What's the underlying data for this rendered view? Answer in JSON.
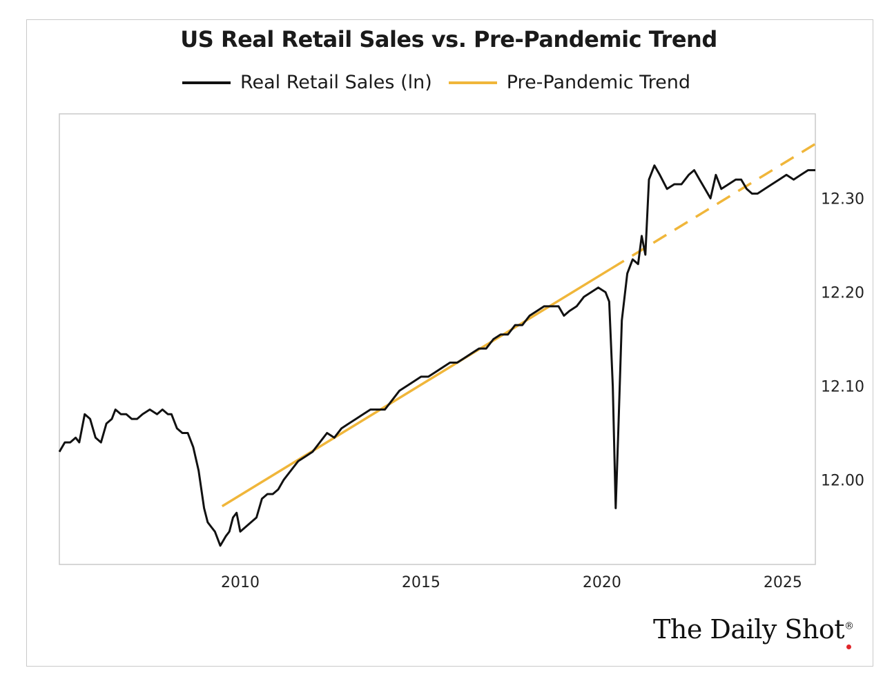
{
  "chart_data": {
    "type": "line",
    "title": "US Real Retail Sales vs. Pre-Pandemic Trend",
    "xlabel": "",
    "ylabel": "",
    "xlim": [
      2005.0,
      2025.9
    ],
    "ylim": [
      11.91,
      12.39
    ],
    "x_ticks": [
      2010,
      2015,
      2020,
      2025
    ],
    "y_ticks": [
      "12.00",
      "12.10",
      "12.20",
      "12.30"
    ],
    "y_tick_values": [
      12.0,
      12.1,
      12.2,
      12.3
    ],
    "y_axis_side": "right",
    "grid": false,
    "legend_placement": "top-center",
    "series": [
      {
        "name": "Real Retail Sales (ln)",
        "color": "#111111",
        "style": "solid",
        "points": [
          [
            2005.0,
            12.03
          ],
          [
            2005.15,
            12.04
          ],
          [
            2005.3,
            12.04
          ],
          [
            2005.45,
            12.045
          ],
          [
            2005.55,
            12.04
          ],
          [
            2005.7,
            12.07
          ],
          [
            2005.85,
            12.065
          ],
          [
            2006.0,
            12.045
          ],
          [
            2006.15,
            12.04
          ],
          [
            2006.3,
            12.06
          ],
          [
            2006.45,
            12.065
          ],
          [
            2006.55,
            12.075
          ],
          [
            2006.7,
            12.07
          ],
          [
            2006.85,
            12.07
          ],
          [
            2007.0,
            12.065
          ],
          [
            2007.15,
            12.065
          ],
          [
            2007.3,
            12.07
          ],
          [
            2007.5,
            12.075
          ],
          [
            2007.7,
            12.07
          ],
          [
            2007.85,
            12.075
          ],
          [
            2008.0,
            12.07
          ],
          [
            2008.1,
            12.07
          ],
          [
            2008.25,
            12.055
          ],
          [
            2008.4,
            12.05
          ],
          [
            2008.55,
            12.05
          ],
          [
            2008.7,
            12.035
          ],
          [
            2008.85,
            12.01
          ],
          [
            2009.0,
            11.97
          ],
          [
            2009.1,
            11.955
          ],
          [
            2009.2,
            11.95
          ],
          [
            2009.3,
            11.945
          ],
          [
            2009.45,
            11.93
          ],
          [
            2009.6,
            11.94
          ],
          [
            2009.7,
            11.945
          ],
          [
            2009.8,
            11.96
          ],
          [
            2009.9,
            11.965
          ],
          [
            2010.0,
            11.945
          ],
          [
            2010.15,
            11.95
          ],
          [
            2010.3,
            11.955
          ],
          [
            2010.45,
            11.96
          ],
          [
            2010.6,
            11.98
          ],
          [
            2010.75,
            11.985
          ],
          [
            2010.9,
            11.985
          ],
          [
            2011.05,
            11.99
          ],
          [
            2011.2,
            12.0
          ],
          [
            2011.4,
            12.01
          ],
          [
            2011.6,
            12.02
          ],
          [
            2011.8,
            12.025
          ],
          [
            2012.0,
            12.03
          ],
          [
            2012.2,
            12.04
          ],
          [
            2012.4,
            12.05
          ],
          [
            2012.6,
            12.045
          ],
          [
            2012.8,
            12.055
          ],
          [
            2013.0,
            12.06
          ],
          [
            2013.2,
            12.065
          ],
          [
            2013.4,
            12.07
          ],
          [
            2013.6,
            12.075
          ],
          [
            2013.8,
            12.075
          ],
          [
            2014.0,
            12.075
          ],
          [
            2014.2,
            12.085
          ],
          [
            2014.4,
            12.095
          ],
          [
            2014.6,
            12.1
          ],
          [
            2014.8,
            12.105
          ],
          [
            2015.0,
            12.11
          ],
          [
            2015.2,
            12.11
          ],
          [
            2015.4,
            12.115
          ],
          [
            2015.6,
            12.12
          ],
          [
            2015.8,
            12.125
          ],
          [
            2016.0,
            12.125
          ],
          [
            2016.2,
            12.13
          ],
          [
            2016.4,
            12.135
          ],
          [
            2016.6,
            12.14
          ],
          [
            2016.8,
            12.14
          ],
          [
            2017.0,
            12.15
          ],
          [
            2017.2,
            12.155
          ],
          [
            2017.4,
            12.155
          ],
          [
            2017.6,
            12.165
          ],
          [
            2017.8,
            12.165
          ],
          [
            2018.0,
            12.175
          ],
          [
            2018.2,
            12.18
          ],
          [
            2018.4,
            12.185
          ],
          [
            2018.6,
            12.185
          ],
          [
            2018.8,
            12.185
          ],
          [
            2018.95,
            12.175
          ],
          [
            2019.1,
            12.18
          ],
          [
            2019.3,
            12.185
          ],
          [
            2019.5,
            12.195
          ],
          [
            2019.7,
            12.2
          ],
          [
            2019.9,
            12.205
          ],
          [
            2020.1,
            12.2
          ],
          [
            2020.2,
            12.19
          ],
          [
            2020.3,
            12.1
          ],
          [
            2020.38,
            11.97
          ],
          [
            2020.45,
            12.05
          ],
          [
            2020.55,
            12.17
          ],
          [
            2020.7,
            12.22
          ],
          [
            2020.85,
            12.235
          ],
          [
            2021.0,
            12.23
          ],
          [
            2021.1,
            12.26
          ],
          [
            2021.2,
            12.24
          ],
          [
            2021.3,
            12.32
          ],
          [
            2021.45,
            12.335
          ],
          [
            2021.6,
            12.325
          ],
          [
            2021.8,
            12.31
          ],
          [
            2022.0,
            12.315
          ],
          [
            2022.2,
            12.315
          ],
          [
            2022.4,
            12.325
          ],
          [
            2022.55,
            12.33
          ],
          [
            2022.7,
            12.32
          ],
          [
            2022.85,
            12.31
          ],
          [
            2023.0,
            12.3
          ],
          [
            2023.15,
            12.325
          ],
          [
            2023.3,
            12.31
          ],
          [
            2023.5,
            12.315
          ],
          [
            2023.7,
            12.32
          ],
          [
            2023.85,
            12.32
          ],
          [
            2024.0,
            12.31
          ],
          [
            2024.15,
            12.305
          ],
          [
            2024.3,
            12.305
          ],
          [
            2024.5,
            12.31
          ],
          [
            2024.7,
            12.315
          ],
          [
            2024.9,
            12.32
          ],
          [
            2025.1,
            12.325
          ],
          [
            2025.3,
            12.32
          ],
          [
            2025.5,
            12.325
          ],
          [
            2025.7,
            12.33
          ],
          [
            2025.9,
            12.33
          ]
        ]
      },
      {
        "name": "Pre-Pandemic Trend",
        "color": "#F0B63A",
        "style": "solid-then-dashed",
        "dash_start_x": 2020.25,
        "points": [
          [
            2009.5,
            11.972
          ],
          [
            2025.9,
            12.358
          ]
        ]
      }
    ]
  },
  "brand": {
    "text": "The Daily Shot",
    "reg": "®",
    "dot_color": "#e0262a"
  }
}
